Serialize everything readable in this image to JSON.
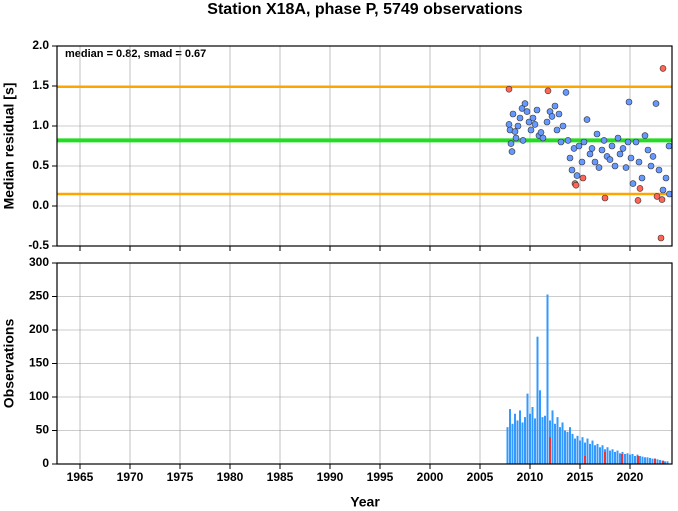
{
  "chart_data": [
    {
      "type": "scatter",
      "title": "Station X18A, phase P, 5749 observations",
      "annotation": "median = 0.82, smad = 0.67",
      "ylabel": "Median residual [s]",
      "xlim": [
        1962.7,
        2024.2
      ],
      "xticks": [
        1965,
        1970,
        1975,
        1980,
        1985,
        1990,
        1995,
        2000,
        2005,
        2010,
        2015,
        2020
      ],
      "ylim": [
        -0.5,
        2.0
      ],
      "yticks": [
        -0.5,
        {
          "value": 0,
          "label": "0.0"
        },
        0.5,
        {
          "value": 1,
          "label": "1.0"
        },
        1.5,
        {
          "value": 2,
          "label": "2.0"
        }
      ],
      "grid": true,
      "hlines": [
        {
          "value": 1.49,
          "color": "#ffa500"
        },
        {
          "value": 0.82,
          "color": "#22dd22"
        },
        {
          "value": 0.15,
          "color": "#ffa500"
        }
      ],
      "series": [
        {
          "color": "#6699ff",
          "x": [
            2007.9,
            2008.0,
            2008.1,
            2008.2,
            2008.3,
            2008.5,
            2008.6,
            2008.8,
            2009.0,
            2009.2,
            2009.3,
            2009.5,
            2009.7,
            2009.9,
            2010.1,
            2010.3,
            2010.5,
            2010.7,
            2010.9,
            2011.1,
            2011.3,
            2011.7,
            2012.0,
            2012.2,
            2012.5,
            2012.7,
            2012.9,
            2013.1,
            2013.3,
            2013.6,
            2013.8,
            2014.0,
            2014.2,
            2014.4,
            2014.7,
            2014.9,
            2015.2,
            2015.4,
            2015.7,
            2016.0,
            2016.2,
            2016.5,
            2016.7,
            2016.9,
            2017.2,
            2017.4,
            2017.7,
            2018.0,
            2018.2,
            2018.5,
            2018.8,
            2019.0,
            2019.3,
            2019.6,
            2019.8,
            2019.9,
            2020.1,
            2020.3,
            2020.6,
            2020.9,
            2021.2,
            2021.5,
            2021.8,
            2022.1,
            2022.3,
            2022.6,
            2022.9,
            2023.3,
            2023.6,
            2023.9,
            2023.95
          ],
          "values": [
            1.02,
            0.95,
            0.78,
            0.68,
            1.15,
            0.93,
            0.85,
            1.0,
            1.1,
            1.22,
            0.82,
            1.28,
            1.18,
            1.05,
            0.95,
            1.1,
            1.02,
            1.2,
            0.88,
            0.92,
            0.85,
            1.05,
            1.18,
            1.12,
            1.25,
            0.95,
            1.15,
            0.8,
            1.0,
            1.42,
            0.82,
            0.6,
            0.45,
            0.72,
            0.38,
            0.75,
            0.55,
            0.8,
            1.08,
            0.65,
            0.72,
            0.55,
            0.9,
            0.48,
            0.7,
            0.82,
            0.62,
            0.58,
            0.75,
            0.5,
            0.85,
            0.65,
            0.72,
            0.48,
            0.8,
            1.3,
            0.6,
            0.28,
            0.8,
            0.55,
            0.35,
            0.88,
            0.7,
            0.5,
            0.62,
            1.28,
            0.45,
            0.2,
            0.35,
            0.75,
            0.15
          ]
        },
        {
          "color": "#ff6655",
          "x": [
            2007.9,
            2011.8,
            2014.5,
            2014.6,
            2015.3,
            2017.5,
            2020.8,
            2021.0,
            2022.7,
            2023.2,
            2023.1,
            2023.3
          ],
          "values": [
            1.46,
            1.44,
            0.28,
            0.26,
            0.35,
            0.1,
            0.07,
            0.22,
            0.12,
            0.08,
            -0.4,
            1.72
          ]
        }
      ]
    },
    {
      "type": "bar",
      "ylabel": "Observations",
      "xlabel": "Year",
      "xlim": [
        1962.7,
        2024.2
      ],
      "xticks": [
        1965,
        1970,
        1975,
        1980,
        1985,
        1990,
        1995,
        2000,
        2005,
        2010,
        2015,
        2020
      ],
      "ylim": [
        0,
        300
      ],
      "yticks": [
        0,
        50,
        100,
        150,
        200,
        250,
        300
      ],
      "grid": true,
      "series": [
        {
          "color": "#3399ff",
          "x": [
            2007.75,
            2008,
            2008.25,
            2008.5,
            2008.75,
            2009,
            2009.25,
            2009.5,
            2009.75,
            2010,
            2010.25,
            2010.5,
            2010.75,
            2011,
            2011.25,
            2011.5,
            2011.75,
            2012,
            2012.25,
            2012.5,
            2012.75,
            2013,
            2013.25,
            2013.5,
            2013.75,
            2014,
            2014.25,
            2014.5,
            2014.75,
            2015,
            2015.25,
            2015.5,
            2015.75,
            2016,
            2016.25,
            2016.5,
            2016.75,
            2017,
            2017.25,
            2017.5,
            2017.75,
            2018,
            2018.25,
            2018.5,
            2018.75,
            2019,
            2019.25,
            2019.5,
            2019.75,
            2020,
            2020.25,
            2020.5,
            2020.75,
            2021,
            2021.25,
            2021.5,
            2021.75,
            2022,
            2022.25,
            2022.5,
            2022.75,
            2023,
            2023.25,
            2023.5,
            2023.75
          ],
          "values": [
            55,
            82,
            60,
            75,
            65,
            80,
            62,
            70,
            105,
            75,
            85,
            68,
            190,
            110,
            70,
            72,
            253,
            65,
            80,
            60,
            70,
            55,
            62,
            50,
            48,
            55,
            45,
            38,
            42,
            35,
            40,
            32,
            38,
            30,
            35,
            28,
            30,
            25,
            28,
            22,
            25,
            20,
            22,
            18,
            20,
            16,
            18,
            15,
            16,
            14,
            15,
            12,
            14,
            12,
            11,
            10,
            10,
            9,
            8,
            8,
            7,
            6,
            5,
            4,
            4
          ]
        },
        {
          "color": "#ee3333",
          "x": [
            2012,
            2015.5,
            2017.5,
            2019.2,
            2020.8,
            2022.5,
            2023.3
          ],
          "values": [
            40,
            12,
            18,
            15,
            12,
            8,
            5
          ]
        }
      ]
    }
  ]
}
